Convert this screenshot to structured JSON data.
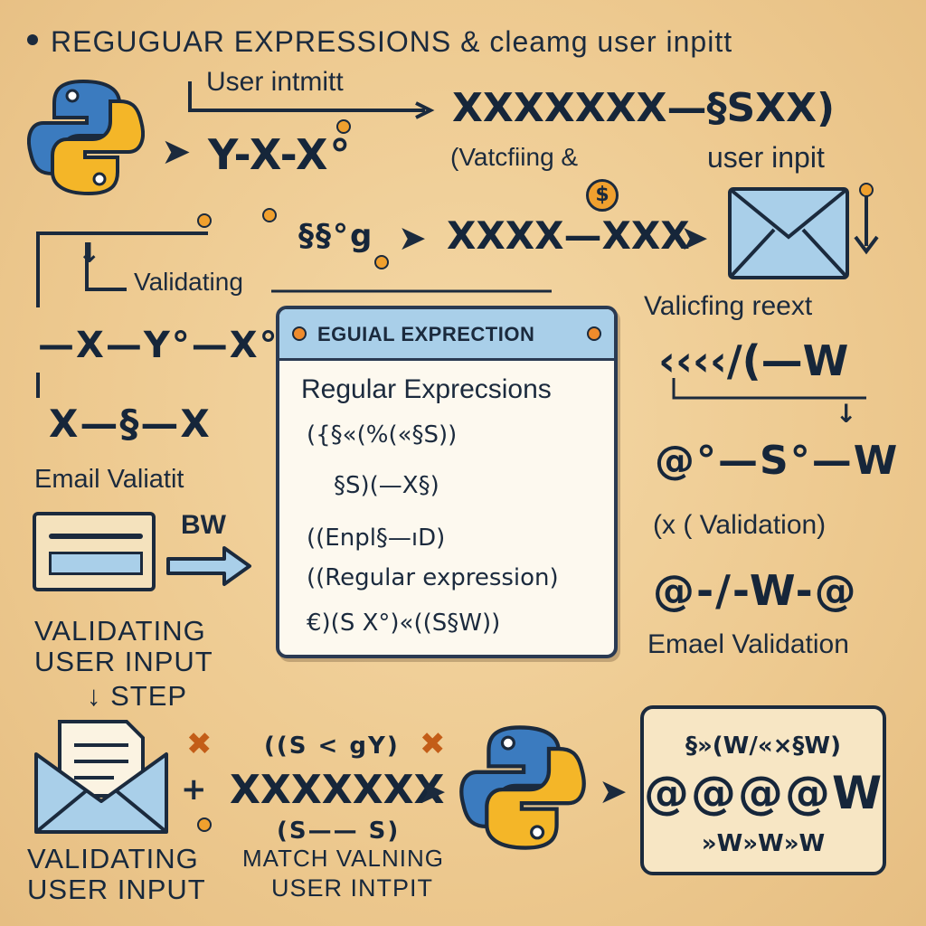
{
  "header": {
    "title": "REGUGUAR EXPRESSIONS & cleamg user inpitt"
  },
  "top": {
    "user_label": "User intmitt",
    "chain_left": "Y-X-X°",
    "pattern_a": "XXXXXXX—§SXX)",
    "matching": "(Vatcfiing &",
    "user_input": "user inpit",
    "dollar": "$",
    "chain_mid": "§§°g",
    "pattern_b": "XXXX—XXX"
  },
  "left": {
    "validating": "Validating",
    "chain_1": "—X—Y°—X°",
    "chain_2": "X—§—X",
    "email_label": "Email Valiatit",
    "bw": "BW",
    "validating_caps_1": "VALIDATING",
    "validating_caps_2": "USER INPUT",
    "step": "STEP"
  },
  "window": {
    "title": "EGUIAL EXPRECTION",
    "heading": "Regular Exprecsions",
    "lines": [
      "({§«(%(«§S))",
      "§S)(—X§)",
      "((Enpl§—ıD)",
      "((Regular expression)",
      "€)(S X°)«((S§W))"
    ]
  },
  "right": {
    "validing_text": "Valicfing  reext",
    "pattern_c": "‹‹‹‹/(—W",
    "chain_3": "@°—S°—W",
    "validation": "(x  ( Validation)",
    "chain_4": "@-/-W-@",
    "email_validation": "Emael Validation"
  },
  "bottom": {
    "paren_top": "((S < gY)",
    "pattern_d": "XXXXXXX",
    "paren_bottom": "(S—— S)",
    "validating_caps_1": "VALIDATING",
    "validating_caps_2": "USER INPUT",
    "match_1": "MATCH VALNING",
    "match_2": "USER INTPIT",
    "result_lines": [
      "§»(W/«×§W)",
      "@@@@W",
      "»W»W»W"
    ]
  },
  "colors": {
    "background": "#edc98f",
    "ink": "#1b2a3d",
    "accent_orange": "#f0a02e",
    "window_bar": "#a9cfe9",
    "python_blue": "#3b7bbf",
    "python_yellow": "#f4b628"
  },
  "icons": [
    "python-logo-icon",
    "envelope-icon",
    "arrow-right-icon",
    "arrow-down-icon",
    "card-icon",
    "close-x-icon",
    "dollar-badge-icon"
  ]
}
